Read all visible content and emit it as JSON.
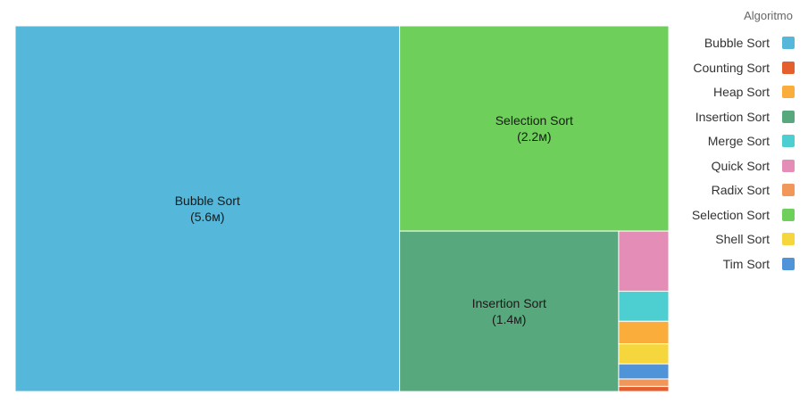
{
  "chart_data": {
    "type": "treemap",
    "legend_title": "Algoritmo",
    "legend_position": "right",
    "legend": [
      {
        "name": "Bubble Sort",
        "color": "#55b7d9"
      },
      {
        "name": "Counting Sort",
        "color": "#e45e2e"
      },
      {
        "name": "Heap Sort",
        "color": "#fbad3c"
      },
      {
        "name": "Insertion Sort",
        "color": "#57a87c"
      },
      {
        "name": "Merge Sort",
        "color": "#4dcfd1"
      },
      {
        "name": "Quick Sort",
        "color": "#e38db7"
      },
      {
        "name": "Radix Sort",
        "color": "#f1975a"
      },
      {
        "name": "Selection Sort",
        "color": "#6ecf5a"
      },
      {
        "name": "Shell Sort",
        "color": "#f5d63d"
      },
      {
        "name": "Tim Sort",
        "color": "#4f93d8"
      }
    ],
    "items": [
      {
        "name": "Bubble Sort",
        "label": "Bubble Sort",
        "value_label": "(5.6м)",
        "value": 5.6
      },
      {
        "name": "Selection Sort",
        "label": "Selection Sort",
        "value_label": "(2.2м)",
        "value": 2.2
      },
      {
        "name": "Insertion Sort",
        "label": "Insertion Sort",
        "value_label": "(1.4м)",
        "value": 1.4
      },
      {
        "name": "Quick Sort",
        "value": 0.12
      },
      {
        "name": "Merge Sort",
        "value": 0.06
      },
      {
        "name": "Heap Sort",
        "value": 0.045
      },
      {
        "name": "Shell Sort",
        "value": 0.04
      },
      {
        "name": "Tim Sort",
        "value": 0.03
      },
      {
        "name": "Radix Sort",
        "value": 0.015
      },
      {
        "name": "Counting Sort",
        "value": 0.01
      }
    ]
  }
}
